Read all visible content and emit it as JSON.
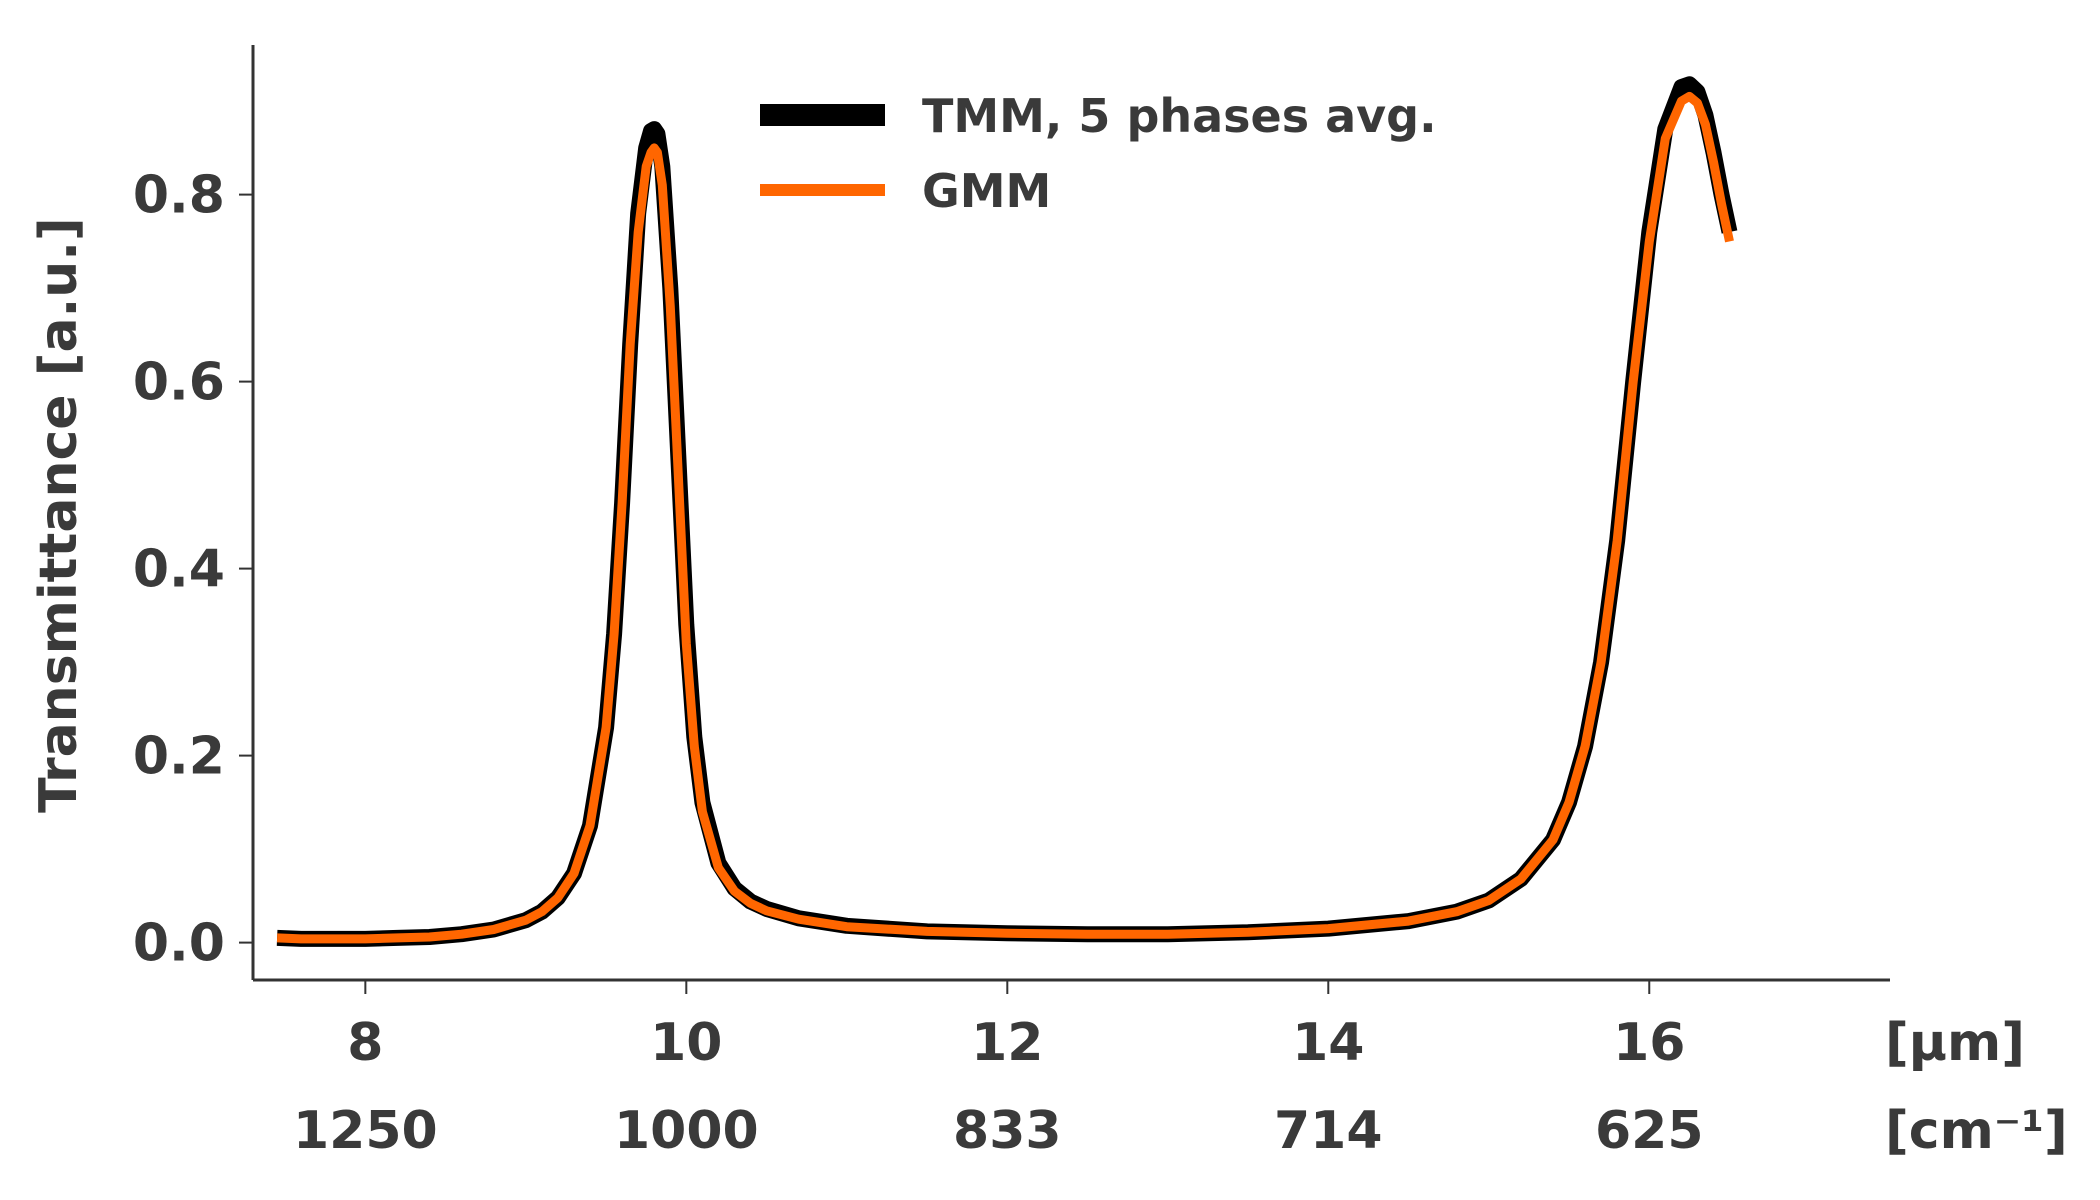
{
  "chart_data": {
    "type": "line",
    "title": "",
    "xlabel": "",
    "ylabel": "Transmittance [a.u.]",
    "xunit_primary": "[μm]",
    "xunit_secondary": "[cm⁻¹]",
    "xlim": [
      7.3,
      17.5
    ],
    "ylim": [
      -0.04,
      0.96
    ],
    "xticks": [
      8,
      10,
      12,
      14,
      16
    ],
    "xtick_labels": [
      "8",
      "10",
      "12",
      "14",
      "16"
    ],
    "xtick_labels_secondary": [
      "1250",
      "1000",
      "833",
      "714",
      "625"
    ],
    "yticks": [
      0.0,
      0.2,
      0.4,
      0.6,
      0.8
    ],
    "ytick_labels": [
      "0.0",
      "0.2",
      "0.4",
      "0.6",
      "0.8"
    ],
    "grid": false,
    "legend_position": "top-center",
    "series": [
      {
        "name": "TMM, 5 phases avg.",
        "color": "#000000",
        "x": [
          7.45,
          7.6,
          7.8,
          8.0,
          8.2,
          8.4,
          8.6,
          8.8,
          9.0,
          9.1,
          9.2,
          9.3,
          9.4,
          9.5,
          9.55,
          9.6,
          9.65,
          9.7,
          9.75,
          9.78,
          9.8,
          9.82,
          9.85,
          9.9,
          9.95,
          10.0,
          10.05,
          10.1,
          10.2,
          10.3,
          10.4,
          10.5,
          10.7,
          11.0,
          11.5,
          12.0,
          12.5,
          13.0,
          13.5,
          14.0,
          14.5,
          14.8,
          15.0,
          15.2,
          15.4,
          15.5,
          15.6,
          15.7,
          15.8,
          15.9,
          16.0,
          16.1,
          16.2,
          16.25,
          16.3,
          16.35,
          16.4,
          16.45,
          16.5
        ],
        "values": [
          0.005,
          0.004,
          0.004,
          0.004,
          0.005,
          0.006,
          0.009,
          0.014,
          0.024,
          0.033,
          0.048,
          0.074,
          0.125,
          0.23,
          0.33,
          0.47,
          0.64,
          0.78,
          0.85,
          0.868,
          0.87,
          0.865,
          0.83,
          0.7,
          0.52,
          0.34,
          0.22,
          0.15,
          0.085,
          0.058,
          0.044,
          0.036,
          0.026,
          0.018,
          0.012,
          0.01,
          0.009,
          0.009,
          0.011,
          0.015,
          0.023,
          0.033,
          0.045,
          0.068,
          0.11,
          0.15,
          0.21,
          0.3,
          0.43,
          0.6,
          0.76,
          0.87,
          0.915,
          0.918,
          0.91,
          0.885,
          0.845,
          0.8,
          0.76
        ]
      },
      {
        "name": "GMM",
        "color": "#ff6600",
        "x": [
          7.45,
          7.6,
          7.8,
          8.0,
          8.2,
          8.4,
          8.6,
          8.8,
          9.0,
          9.1,
          9.2,
          9.3,
          9.4,
          9.5,
          9.55,
          9.6,
          9.65,
          9.7,
          9.75,
          9.78,
          9.8,
          9.82,
          9.85,
          9.9,
          9.95,
          10.0,
          10.05,
          10.1,
          10.2,
          10.3,
          10.4,
          10.5,
          10.7,
          11.0,
          11.5,
          12.0,
          12.5,
          13.0,
          13.5,
          14.0,
          14.5,
          14.8,
          15.0,
          15.2,
          15.4,
          15.5,
          15.6,
          15.7,
          15.8,
          15.9,
          16.0,
          16.1,
          16.2,
          16.25,
          16.3,
          16.35,
          16.4,
          16.45,
          16.5
        ],
        "values": [
          0.005,
          0.004,
          0.004,
          0.004,
          0.005,
          0.006,
          0.009,
          0.014,
          0.024,
          0.033,
          0.048,
          0.074,
          0.125,
          0.23,
          0.33,
          0.47,
          0.64,
          0.76,
          0.83,
          0.845,
          0.85,
          0.845,
          0.81,
          0.68,
          0.5,
          0.32,
          0.21,
          0.14,
          0.08,
          0.055,
          0.042,
          0.034,
          0.025,
          0.017,
          0.012,
          0.01,
          0.009,
          0.009,
          0.011,
          0.015,
          0.023,
          0.033,
          0.045,
          0.068,
          0.11,
          0.15,
          0.21,
          0.3,
          0.43,
          0.6,
          0.75,
          0.86,
          0.9,
          0.905,
          0.898,
          0.875,
          0.835,
          0.79,
          0.75
        ]
      }
    ]
  }
}
